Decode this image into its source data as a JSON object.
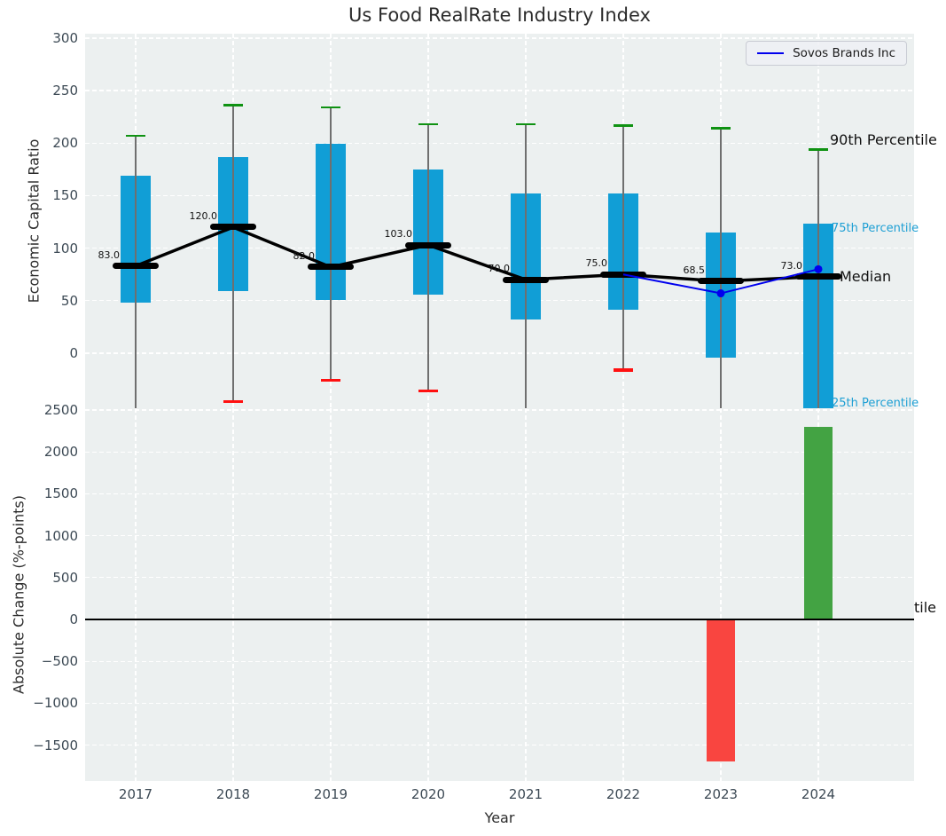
{
  "title": "Us Food RealRate Industry Index",
  "legend": {
    "label": "Sovos Brands Inc",
    "line_color": "#0000ee"
  },
  "labels": {
    "p90": "90th Percentile",
    "p75": "75th Percentile",
    "median": "Median",
    "p25": "25th Percentile",
    "truncated": "tile"
  },
  "colors": {
    "panel_bg": "#ecf0f0",
    "box_fill": "#119ed6",
    "whisker": "#6f6f6f",
    "cap_high": "#0f9212",
    "cap_low": "#ff1010",
    "median": "#000000",
    "sovos_line": "#0000ee",
    "bar_positive": "#43a343",
    "bar_negative": "#f94540",
    "tick_text": "#3d4a55"
  },
  "chart_data": [
    {
      "type": "box",
      "panel": "top",
      "title": "Us Food RealRate Industry Index",
      "ylabel": "Economic Capital Ratio",
      "xlabel": "Year",
      "ylim": [
        -52.4,
        304.2
      ],
      "yticks": [
        300,
        250,
        200,
        150,
        100,
        50,
        0
      ],
      "grid": true,
      "legend_position": "upper right",
      "categories": [
        "2017",
        "2018",
        "2019",
        "2020",
        "2021",
        "2022",
        "2023",
        "2024"
      ],
      "boxes": [
        {
          "year": "2017",
          "p90": 207,
          "q3": 169,
          "median": 83.0,
          "label": "83.0",
          "q1": 48,
          "p10": null
        },
        {
          "year": "2018",
          "p90": 236,
          "q3": 187,
          "median": 120.0,
          "label": "120.0",
          "q1": 59,
          "p10": -46
        },
        {
          "year": "2019",
          "p90": 234,
          "q3": 199,
          "median": 82.0,
          "label": "82.0",
          "q1": 51,
          "p10": -26
        },
        {
          "year": "2020",
          "p90": 218,
          "q3": 175,
          "median": 103.0,
          "label": "103.0",
          "q1": 56,
          "p10": -36
        },
        {
          "year": "2021",
          "p90": 218,
          "q3": 152,
          "median": 70.0,
          "label": "70.0",
          "q1": 32,
          "p10": null
        },
        {
          "year": "2022",
          "p90": 217,
          "q3": 152,
          "median": 75.0,
          "label": "75.0",
          "q1": 41,
          "p10": -16
        },
        {
          "year": "2023",
          "p90": 214,
          "q3": 115,
          "median": 68.5,
          "label": "68.5",
          "q1": -4,
          "p10": null
        },
        {
          "year": "2024",
          "p90": 194,
          "q3": 123,
          "median": 73.0,
          "label": "73.0",
          "q1": null,
          "p10": null
        }
      ],
      "median_line_series": [
        83.0,
        120.0,
        82.0,
        103.0,
        70.0,
        75.0,
        68.5,
        73.0
      ],
      "overlay_line": {
        "name": "Sovos Brands Inc",
        "x": [
          "2022",
          "2023",
          "2024"
        ],
        "y": [
          75,
          57,
          80
        ],
        "markers": [
          "2023",
          "2024"
        ]
      }
    },
    {
      "type": "bar",
      "panel": "bottom",
      "ylabel": "Absolute Change (%-points)",
      "ylim": [
        -1928,
        2521
      ],
      "yticks": [
        2500,
        2000,
        1500,
        1000,
        500,
        0,
        -500,
        -1000,
        -1500
      ],
      "grid": true,
      "categories": [
        "2017",
        "2018",
        "2019",
        "2020",
        "2021",
        "2022",
        "2023",
        "2024"
      ],
      "values": [
        0,
        0,
        0,
        0,
        0,
        0,
        -1700,
        2300
      ]
    }
  ]
}
